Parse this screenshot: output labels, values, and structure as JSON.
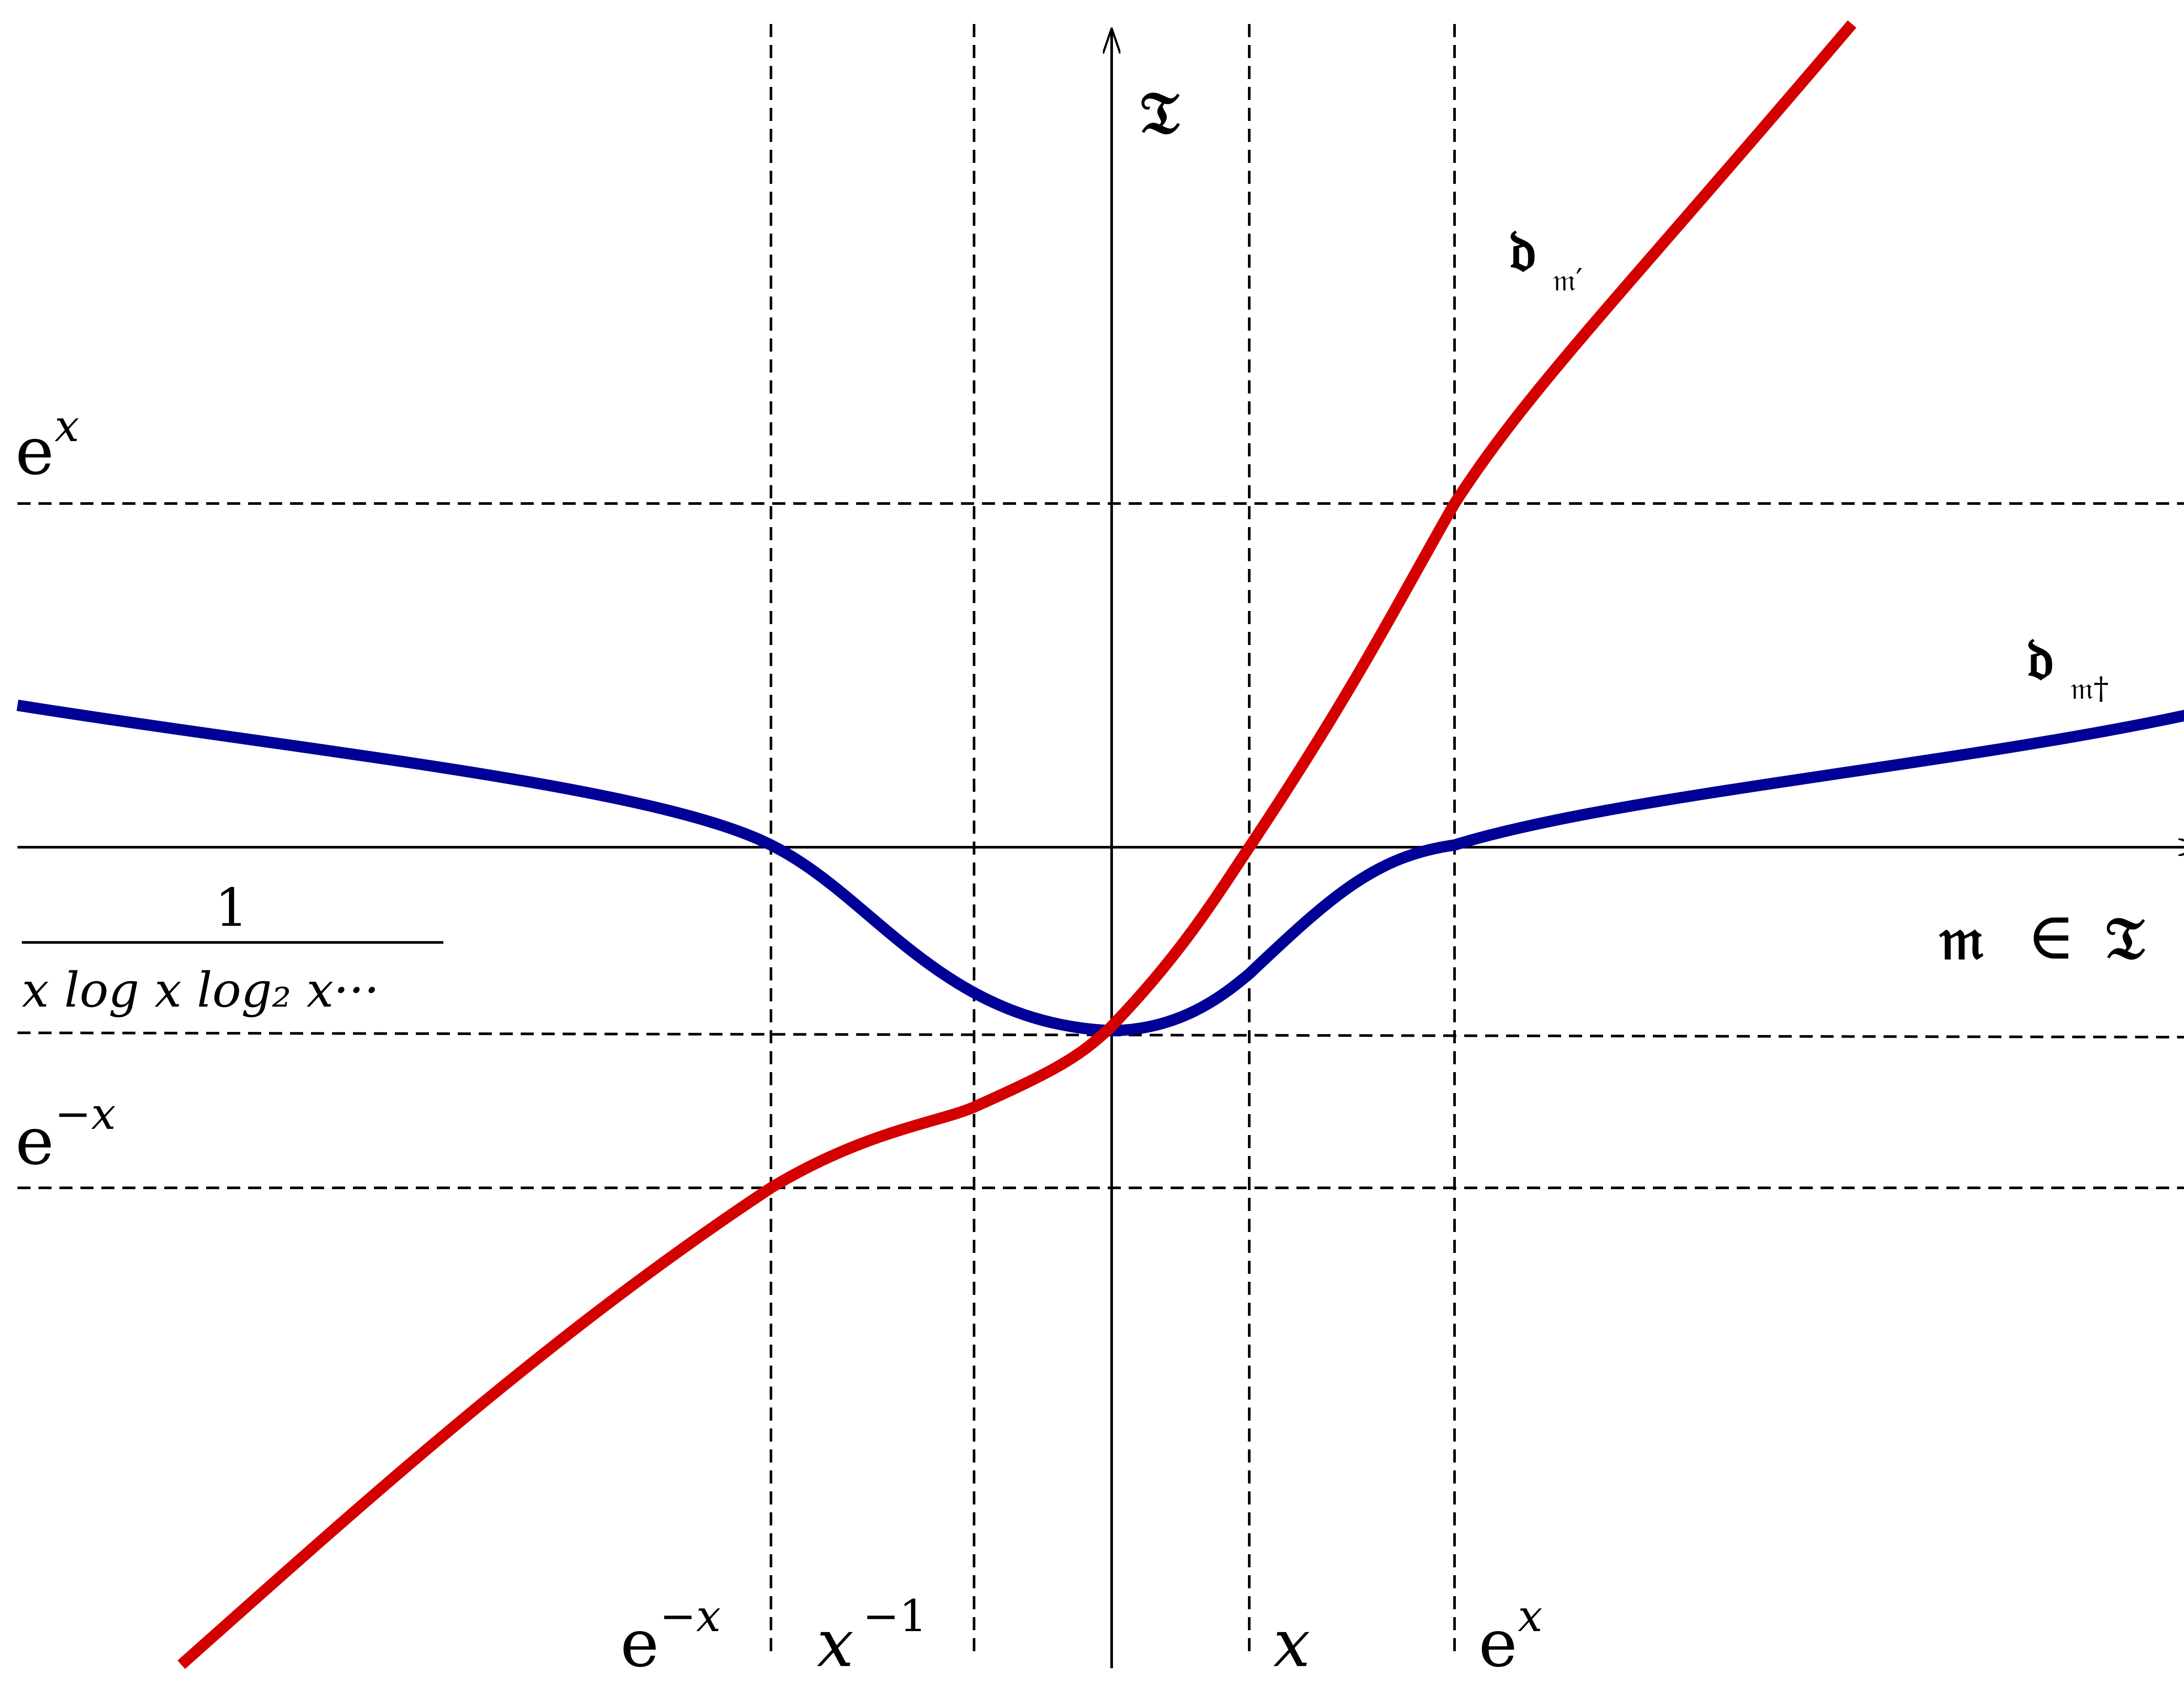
{
  "diagram": {
    "axes": {
      "vertical_axis_label": "𝔗",
      "horizontal_axis_label": {
        "main": "𝔪",
        "relation": "∈",
        "set": "𝔗"
      }
    },
    "horizontal_levels": [
      {
        "id": "ex",
        "base": "e",
        "exponent": "x"
      },
      {
        "id": "inv-iterated-log",
        "numerator": "1",
        "denominator": "x log x log₂ x···"
      },
      {
        "id": "e-minus-x",
        "base": "e",
        "exponent": "−x"
      }
    ],
    "vertical_levels": [
      {
        "id": "e-minus-x",
        "base": "e",
        "exponent": "−x"
      },
      {
        "id": "x-inverse",
        "base": "x",
        "exponent": "−1"
      },
      {
        "id": "x",
        "base": "x",
        "exponent": ""
      },
      {
        "id": "ex",
        "base": "e",
        "exponent": "x"
      }
    ],
    "curves": [
      {
        "id": "d-m-prime",
        "color": "#d40000",
        "label_main": "𝔡",
        "label_sub": "𝔪′"
      },
      {
        "id": "d-m-dagger",
        "color": "#000096",
        "label_main": "𝔡",
        "label_sub": "𝔪†"
      }
    ],
    "colors": {
      "axes": "#000000",
      "guides": "#000000",
      "red_curve": "#d40000",
      "blue_curve": "#000096"
    }
  }
}
